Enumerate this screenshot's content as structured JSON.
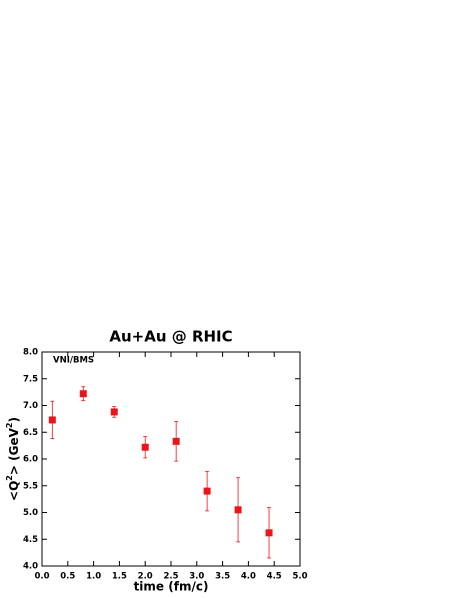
{
  "chart_data": {
    "type": "scatter",
    "title": "Au+Au @ RHIC",
    "annotation": "VNI/BMS",
    "x_label": "time (fm/c)",
    "y_label_parts": [
      "<Q",
      "2",
      "> (GeV",
      "2",
      ")"
    ],
    "x": [
      0.2,
      0.8,
      1.4,
      2.0,
      2.6,
      3.2,
      3.8,
      4.4
    ],
    "series": [
      {
        "color": "#e8161b",
        "values": [
          6.73,
          7.22,
          6.88,
          6.22,
          6.33,
          5.4,
          5.05,
          4.62
        ],
        "errors": [
          0.35,
          0.13,
          0.1,
          0.2,
          0.37,
          0.37,
          0.6,
          0.47
        ]
      }
    ],
    "xlim": [
      0,
      5
    ],
    "ylim": [
      4,
      8
    ],
    "xticks": [
      {
        "value": 0,
        "label": "0.0"
      },
      {
        "value": 0.5,
        "label": "0.5"
      },
      {
        "value": 1,
        "label": "1.0"
      },
      {
        "value": 1.5,
        "label": "1.5"
      },
      {
        "value": 2,
        "label": "2.0"
      },
      {
        "value": 2.5,
        "label": "2.5"
      },
      {
        "value": 3,
        "label": "3.0"
      },
      {
        "value": 3.5,
        "label": "3.5"
      },
      {
        "value": 4,
        "label": "4.0"
      },
      {
        "value": 4.5,
        "label": "4.5"
      },
      {
        "value": 5,
        "label": "5.0"
      }
    ],
    "yticks": [
      {
        "value": 4,
        "label": "4.0"
      },
      {
        "value": 4.5,
        "label": "4.5"
      },
      {
        "value": 5,
        "label": "5.0"
      },
      {
        "value": 5.5,
        "label": "5.5"
      },
      {
        "value": 6,
        "label": "6.0"
      },
      {
        "value": 6.5,
        "label": "6.5"
      },
      {
        "value": 7,
        "label": "7.0"
      },
      {
        "value": 7.5,
        "label": "7.5"
      },
      {
        "value": 8,
        "label": "8.0"
      }
    ]
  }
}
